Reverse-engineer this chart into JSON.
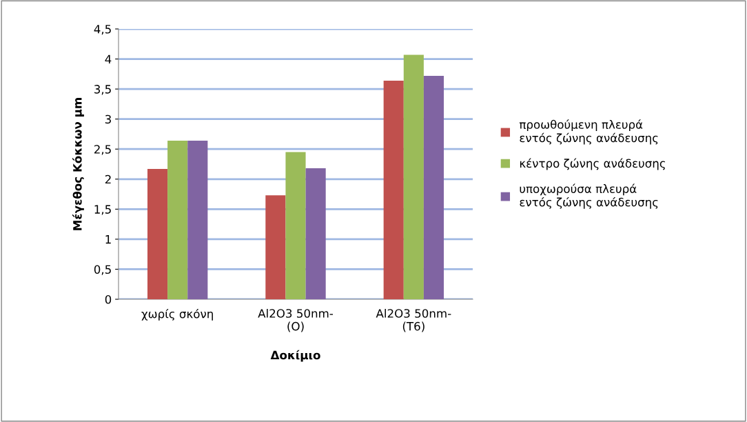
{
  "chart_data": {
    "type": "bar",
    "xlabel": "Δοκίμιο",
    "ylabel": "Μέγεθος Κόκκων μm",
    "categories": [
      "χωρίς σκόνη",
      "Al2O3 50nm-\n(O)",
      "Al2O3 50nm-\n(T6)"
    ],
    "series": [
      {
        "name": "προωθούμενη πλευρά\nεντός ζώνης ανάδευσης",
        "color": "#c0504d",
        "values": [
          2.17,
          1.73,
          3.64
        ]
      },
      {
        "name": "κέντρο ζώνης ανάδευσης",
        "color": "#9bbb59",
        "values": [
          2.64,
          2.45,
          4.07
        ]
      },
      {
        "name": "υποχωρούσα πλευρά\nεντός ζώνης ανάδευσης",
        "color": "#8064a2",
        "values": [
          2.64,
          2.18,
          3.72
        ]
      }
    ],
    "ylim": [
      0,
      4.5
    ],
    "yticks": [
      0,
      {
        "value": 0.5,
        "label": "0,5"
      },
      1,
      {
        "value": 1.5,
        "label": "1,5"
      },
      2,
      {
        "value": 2.5,
        "label": "2,5"
      },
      3,
      {
        "value": 3.5,
        "label": "3,5"
      },
      4,
      {
        "value": 4.5,
        "label": "4,5"
      }
    ],
    "grid": "y",
    "legend": "right"
  }
}
